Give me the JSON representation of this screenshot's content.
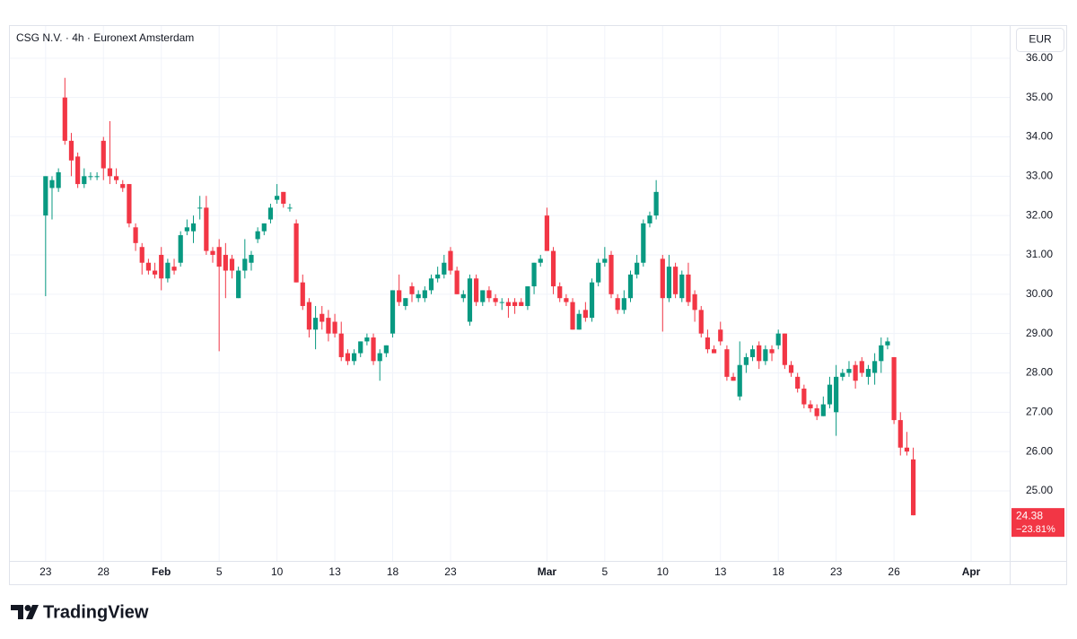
{
  "chart_data": {
    "type": "candlestick",
    "title": "CSG N.V. · 4h · Euronext Amsterdam",
    "currency": "EUR",
    "brand": "TradingView",
    "change_label": "−23.81%",
    "up_color": "#089981",
    "down_color": "#f23645",
    "grid": true,
    "ylim": [
      23.22,
      36.84
    ],
    "yticks": [
      {
        "value": 25,
        "label": "25.00"
      },
      {
        "value": 26,
        "label": "26.00"
      },
      {
        "value": 27,
        "label": "27.00"
      },
      {
        "value": 28,
        "label": "28.00"
      },
      {
        "value": 29,
        "label": "29.00"
      },
      {
        "value": 30,
        "label": "30.00"
      },
      {
        "value": 31,
        "label": "31.00"
      },
      {
        "value": 32,
        "label": "32.00"
      },
      {
        "value": 33,
        "label": "33.00"
      },
      {
        "value": 34,
        "label": "34.00"
      },
      {
        "value": 35,
        "label": "35.00"
      },
      {
        "value": 36,
        "label": "36.00"
      }
    ],
    "xlim": [
      -5.7,
      150
    ],
    "xticks": [
      {
        "value": 0,
        "label": "23"
      },
      {
        "value": 9,
        "label": "28"
      },
      {
        "value": 18,
        "label": "Feb"
      },
      {
        "value": 27,
        "label": "5"
      },
      {
        "value": 36,
        "label": "10"
      },
      {
        "value": 45,
        "label": "13"
      },
      {
        "value": 54,
        "label": "18"
      },
      {
        "value": 63,
        "label": "23"
      },
      {
        "value": 78,
        "label": "Mar"
      },
      {
        "value": 87,
        "label": "5"
      },
      {
        "value": 96,
        "label": "10"
      },
      {
        "value": 105,
        "label": "13"
      },
      {
        "value": 114,
        "label": "18"
      },
      {
        "value": 123,
        "label": "23"
      },
      {
        "value": 132,
        "label": "26"
      },
      {
        "value": 144,
        "label": "Apr"
      }
    ],
    "open": [
      32.0,
      32.7,
      32.7,
      35.0,
      33.9,
      33.5,
      32.8,
      33.0,
      33.0,
      33.9,
      33.2,
      33.0,
      32.8,
      32.8,
      31.7,
      31.2,
      30.8,
      30.6,
      31.0,
      30.4,
      30.7,
      30.8,
      31.6,
      31.6,
      32.2,
      32.2,
      31.1,
      31.2,
      31.0,
      30.9,
      29.9,
      30.6,
      30.8,
      31.4,
      31.6,
      31.9,
      32.4,
      32.6,
      32.2,
      31.8,
      30.3,
      29.8,
      29.1,
      29.5,
      29.4,
      29.3,
      29.0,
      28.5,
      28.3,
      28.5,
      28.8,
      28.9,
      28.3,
      28.5,
      29.0,
      30.1,
      29.7,
      30.2,
      29.9,
      29.9,
      30.1,
      30.4,
      30.5,
      31.1,
      30.6,
      29.9,
      29.3,
      30.4,
      29.8,
      30.1,
      29.9,
      29.8,
      29.8,
      29.8,
      29.8,
      29.7,
      30.2,
      30.8,
      32.0,
      31.1,
      30.2,
      29.9,
      29.8,
      29.1,
      29.6,
      29.4,
      30.3,
      30.8,
      31.0,
      29.9,
      29.6,
      29.9,
      30.5,
      30.8,
      31.8,
      32.0,
      30.9,
      29.9,
      30.7,
      29.9,
      30.5,
      30.0,
      29.6,
      28.9,
      28.6,
      29.1,
      28.6,
      27.9,
      27.4,
      28.2,
      28.4,
      28.7,
      28.3,
      28.6,
      28.7,
      29.0,
      28.2,
      27.9,
      27.6,
      27.2,
      27.1,
      26.9,
      27.2,
      27.0,
      27.9,
      28.0,
      28.2,
      28.3,
      27.9,
      28.0,
      28.3,
      28.7,
      28.4,
      26.8,
      26.1,
      25.8
    ],
    "high": [
      33.0,
      33.0,
      33.2,
      35.5,
      34.1,
      33.6,
      33.2,
      33.1,
      33.1,
      34.0,
      34.4,
      33.2,
      32.9,
      32.8,
      31.8,
      31.3,
      30.9,
      30.8,
      31.2,
      30.9,
      30.9,
      31.6,
      31.9,
      32.0,
      32.5,
      32.5,
      31.2,
      31.4,
      31.3,
      31.0,
      30.7,
      31.4,
      31.1,
      31.7,
      31.8,
      32.3,
      32.8,
      32.6,
      32.3,
      31.9,
      30.5,
      29.9,
      29.7,
      29.7,
      29.6,
      29.5,
      29.3,
      28.6,
      28.6,
      28.8,
      29.0,
      29.0,
      28.6,
      28.7,
      30.1,
      30.5,
      29.9,
      30.3,
      30.1,
      30.2,
      30.5,
      30.7,
      31.0,
      31.2,
      30.7,
      30.1,
      30.5,
      30.5,
      30.1,
      30.2,
      30.0,
      29.9,
      29.9,
      29.9,
      29.9,
      30.2,
      30.8,
      31.0,
      32.2,
      31.2,
      30.3,
      30.0,
      29.9,
      29.6,
      29.8,
      30.4,
      30.9,
      31.2,
      31.1,
      30.0,
      30.1,
      30.6,
      31.0,
      31.9,
      32.1,
      32.9,
      31.0,
      31.0,
      30.8,
      30.6,
      30.8,
      30.1,
      29.7,
      29.1,
      28.7,
      29.3,
      28.7,
      28.0,
      28.8,
      28.5,
      28.7,
      28.8,
      28.7,
      28.7,
      29.1,
      29.0,
      28.3,
      28.0,
      27.7,
      27.3,
      27.2,
      27.4,
      27.9,
      28.2,
      28.1,
      28.3,
      28.3,
      28.4,
      28.2,
      28.5,
      28.9,
      28.9,
      28.4,
      27.0,
      26.5,
      26.1
    ],
    "low": [
      29.95,
      31.9,
      32.6,
      33.8,
      33.0,
      32.7,
      32.7,
      32.9,
      32.9,
      32.9,
      32.8,
      32.8,
      32.6,
      31.7,
      31.1,
      30.5,
      30.5,
      30.4,
      30.1,
      30.3,
      30.5,
      30.7,
      31.5,
      31.3,
      31.9,
      31.0,
      30.8,
      28.55,
      29.9,
      30.4,
      29.9,
      30.4,
      30.6,
      31.3,
      31.5,
      31.8,
      32.3,
      32.2,
      32.1,
      30.3,
      29.6,
      28.9,
      28.6,
      29.1,
      28.8,
      28.9,
      28.3,
      28.2,
      28.2,
      28.4,
      28.7,
      28.2,
      27.8,
      28.4,
      28.9,
      29.7,
      29.6,
      29.8,
      29.8,
      29.8,
      30.0,
      30.3,
      30.4,
      30.5,
      30.0,
      29.8,
      29.2,
      29.7,
      29.7,
      29.8,
      29.7,
      29.6,
      29.4,
      29.5,
      29.7,
      29.6,
      30.0,
      30.7,
      31.1,
      30.0,
      29.8,
      29.7,
      29.1,
      29.1,
      29.3,
      29.3,
      30.2,
      30.7,
      29.9,
      29.5,
      29.5,
      29.8,
      30.4,
      30.7,
      31.7,
      31.9,
      29.05,
      29.8,
      29.9,
      29.8,
      29.7,
      29.3,
      28.9,
      28.5,
      28.5,
      28.7,
      27.8,
      27.8,
      27.3,
      28.0,
      28.3,
      28.1,
      28.2,
      28.3,
      28.6,
      28.1,
      27.9,
      27.5,
      27.1,
      27.0,
      26.8,
      26.9,
      27.1,
      26.4,
      27.8,
      27.9,
      27.6,
      27.9,
      27.7,
      27.7,
      28.0,
      28.6,
      26.7,
      25.9,
      25.9,
      24.38
    ],
    "close": [
      33.0,
      32.9,
      33.1,
      33.9,
      33.4,
      32.8,
      33.0,
      33.0,
      33.0,
      33.2,
      33.0,
      32.9,
      32.7,
      31.8,
      31.3,
      30.8,
      30.6,
      30.5,
      30.4,
      30.8,
      30.6,
      31.5,
      31.7,
      31.8,
      32.2,
      31.1,
      31.0,
      30.7,
      30.6,
      30.6,
      30.6,
      30.9,
      31.0,
      31.6,
      31.8,
      32.2,
      32.5,
      32.3,
      32.2,
      30.3,
      29.7,
      29.1,
      29.4,
      29.3,
      29.0,
      29.0,
      28.4,
      28.3,
      28.5,
      28.8,
      28.9,
      28.3,
      28.5,
      28.7,
      30.1,
      29.8,
      29.9,
      30.0,
      30.0,
      30.1,
      30.4,
      30.5,
      30.8,
      30.6,
      30.0,
      30.0,
      30.4,
      29.8,
      30.1,
      29.9,
      29.8,
      29.8,
      29.7,
      29.7,
      29.7,
      30.2,
      30.8,
      30.9,
      31.1,
      30.2,
      29.9,
      29.8,
      29.1,
      29.5,
      29.4,
      30.3,
      30.8,
      30.9,
      30.0,
      29.6,
      29.9,
      30.5,
      30.8,
      31.8,
      32.0,
      32.6,
      29.9,
      30.7,
      30.0,
      30.5,
      29.8,
      29.6,
      29.0,
      28.6,
      28.5,
      28.8,
      27.9,
      27.8,
      28.2,
      28.4,
      28.6,
      28.3,
      28.6,
      28.5,
      29.0,
      28.2,
      28.0,
      27.6,
      27.2,
      27.1,
      26.9,
      27.2,
      27.7,
      27.9,
      28.0,
      28.1,
      27.8,
      28.0,
      28.1,
      28.3,
      28.7,
      28.8,
      26.8,
      26.1,
      26.0,
      24.38
    ]
  }
}
